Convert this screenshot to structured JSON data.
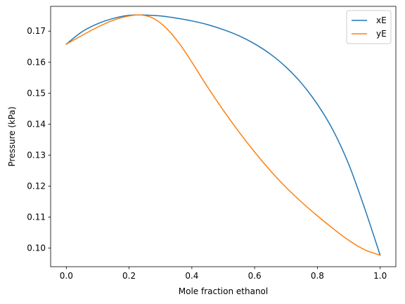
{
  "chart_data": {
    "type": "line",
    "title": "",
    "xlabel": "Mole fraction ethanol",
    "ylabel": "Pressure (kPa)",
    "xlim": [
      -0.05,
      1.05
    ],
    "ylim": [
      0.094,
      0.178
    ],
    "xticks": [
      0.0,
      0.2,
      0.4,
      0.6,
      0.8,
      1.0
    ],
    "xtick_labels": [
      "0.0",
      "0.2",
      "0.4",
      "0.6",
      "0.8",
      "1.0"
    ],
    "yticks": [
      0.1,
      0.11,
      0.12,
      0.13,
      0.14,
      0.15,
      0.16,
      0.17
    ],
    "ytick_labels": [
      "0.10",
      "0.11",
      "0.12",
      "0.13",
      "0.14",
      "0.15",
      "0.16",
      "0.17"
    ],
    "grid": false,
    "legend_position": "top-right",
    "series": [
      {
        "name": "xE",
        "color": "#1f77b4",
        "x": [
          0.0,
          0.05,
          0.1,
          0.15,
          0.2,
          0.25,
          0.3,
          0.35,
          0.4,
          0.45,
          0.5,
          0.55,
          0.6,
          0.65,
          0.7,
          0.75,
          0.8,
          0.85,
          0.9,
          0.95,
          1.0
        ],
        "y": [
          0.1658,
          0.1698,
          0.1724,
          0.1741,
          0.1751,
          0.1752,
          0.1749,
          0.1742,
          0.1733,
          0.1721,
          0.1705,
          0.1685,
          0.1659,
          0.1626,
          0.1584,
          0.1531,
          0.1464,
          0.138,
          0.127,
          0.113,
          0.0977
        ]
      },
      {
        "name": "yE",
        "color": "#ff7f0e",
        "x": [
          0.0,
          0.05,
          0.1,
          0.15,
          0.2,
          0.24,
          0.28,
          0.32,
          0.36,
          0.4,
          0.45,
          0.5,
          0.55,
          0.6,
          0.65,
          0.7,
          0.75,
          0.8,
          0.85,
          0.9,
          0.95,
          1.0
        ],
        "y": [
          0.1658,
          0.1686,
          0.1713,
          0.1735,
          0.1749,
          0.1752,
          0.174,
          0.1708,
          0.166,
          0.16,
          0.152,
          0.1445,
          0.1375,
          0.131,
          0.125,
          0.1196,
          0.1148,
          0.1104,
          0.1063,
          0.1025,
          0.0995,
          0.0977
        ]
      }
    ]
  }
}
